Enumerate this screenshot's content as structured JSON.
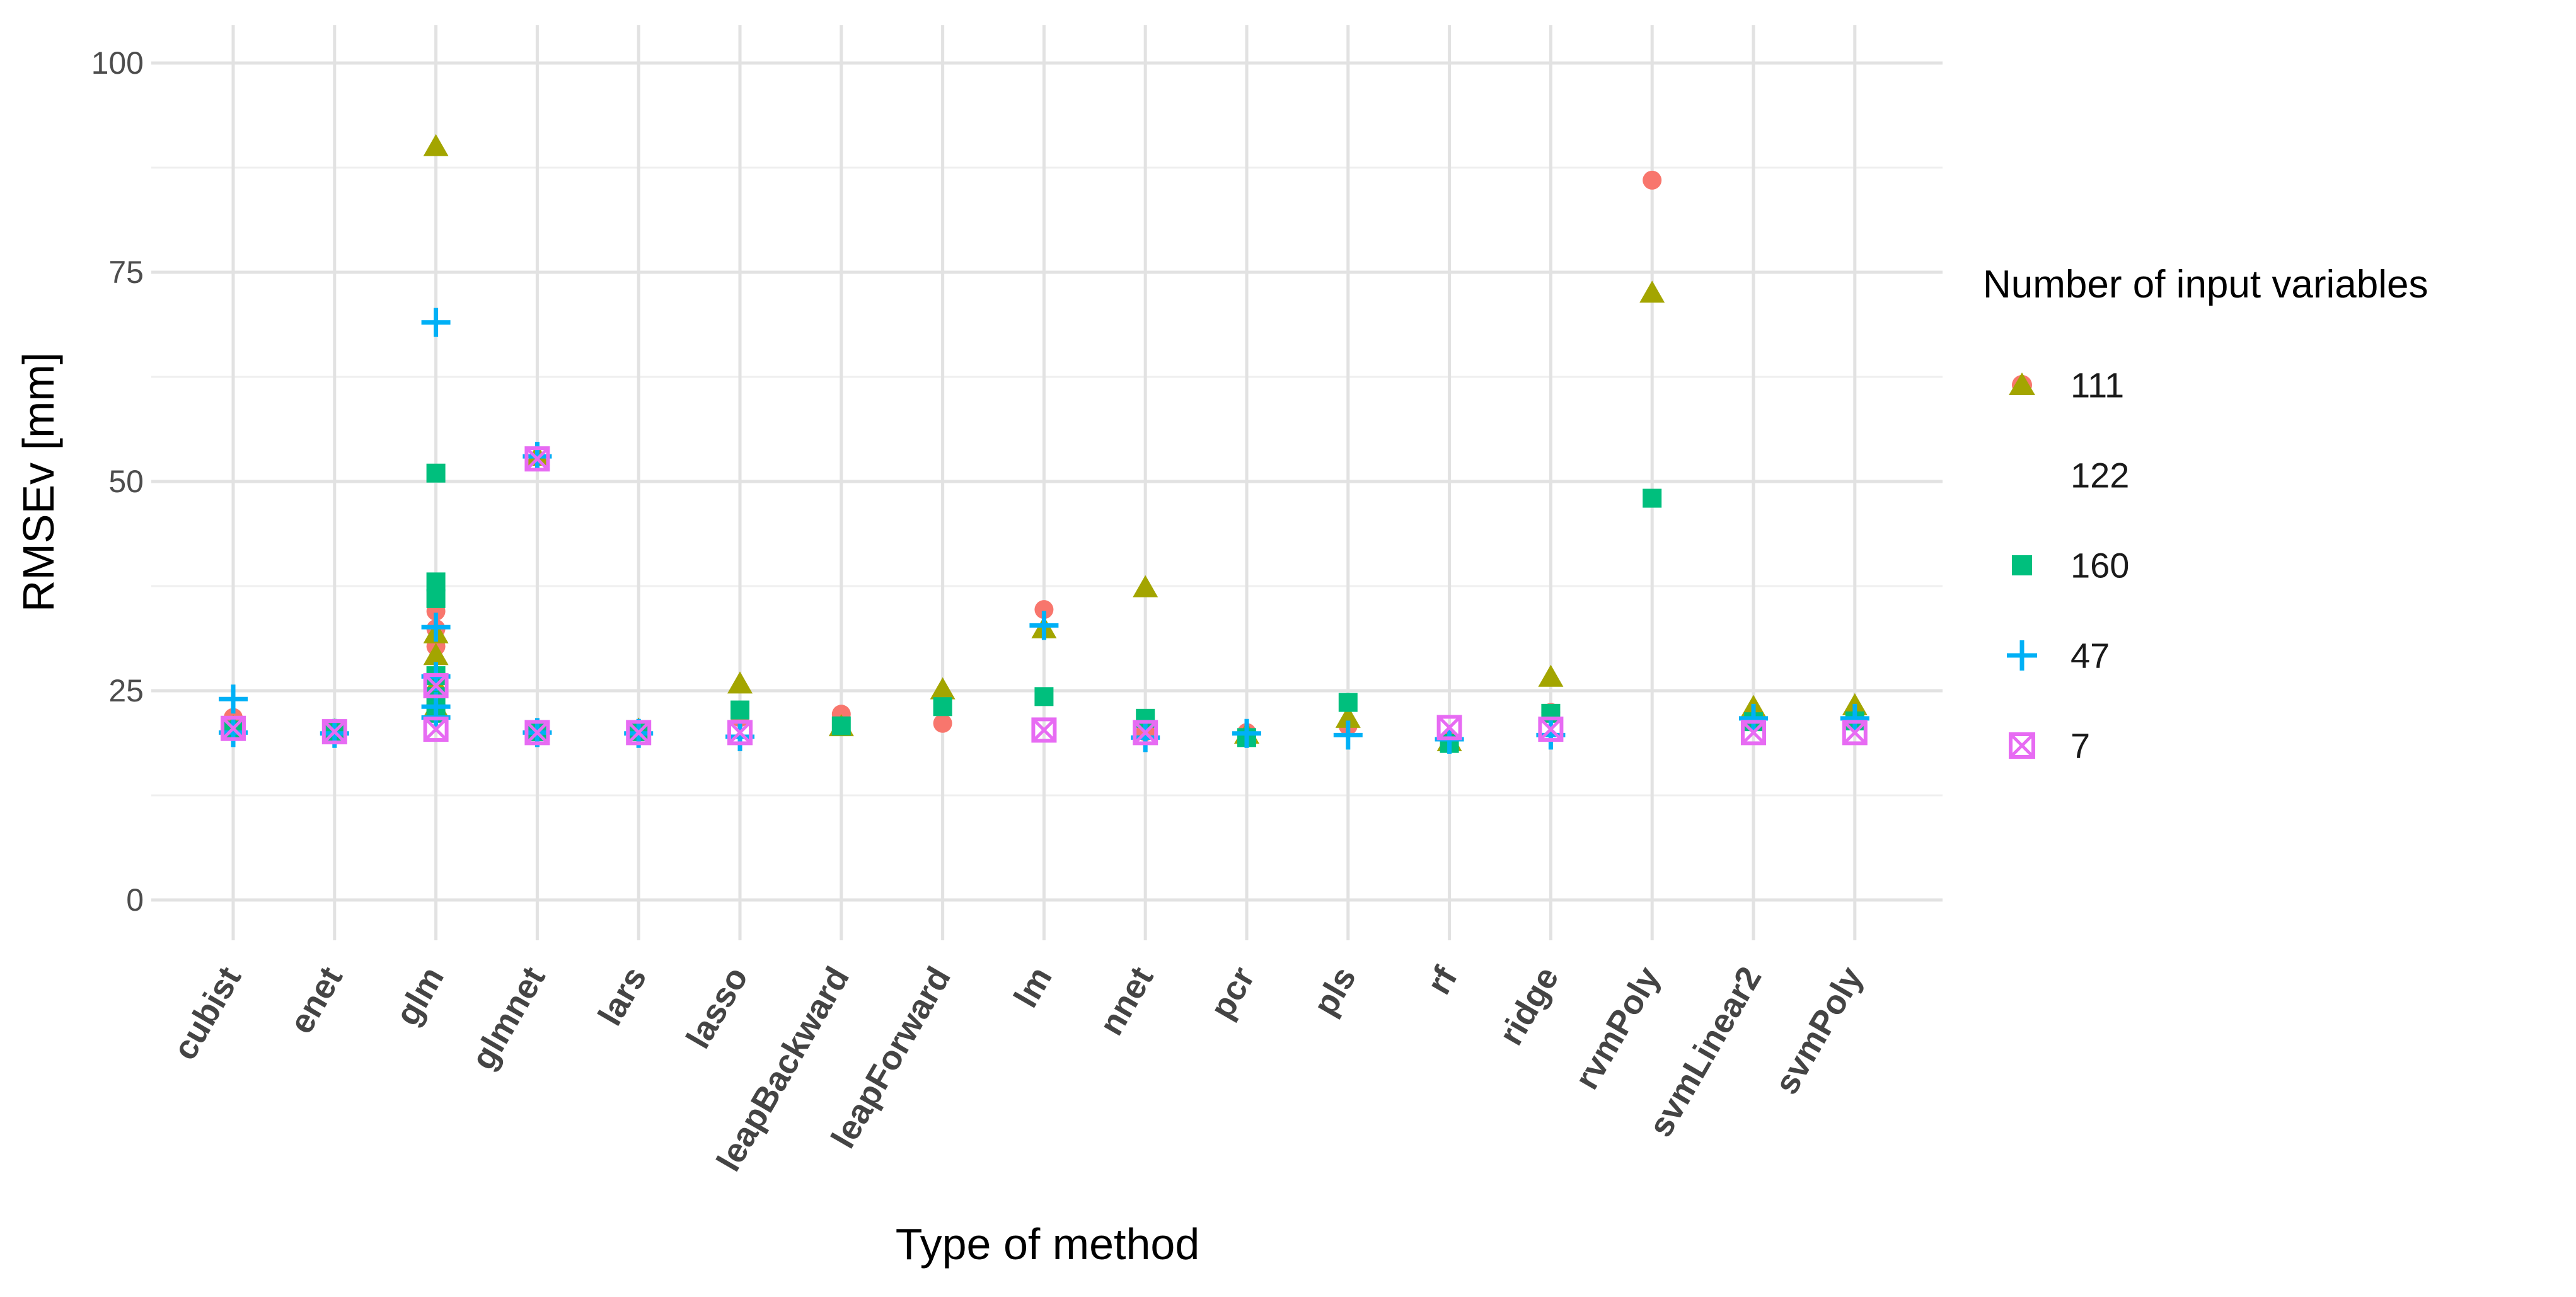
{
  "chart_data": {
    "type": "scatter",
    "title": "",
    "xlabel": "Type of method",
    "ylabel": "RMSEv [mm]",
    "categories": [
      "cubist",
      "enet",
      "glm",
      "glmnet",
      "lars",
      "lasso",
      "leapBackward",
      "leapForward",
      "lm",
      "nnet",
      "pcr",
      "pls",
      "rf",
      "ridge",
      "rvmPoly",
      "svmLinear2",
      "svmPoly"
    ],
    "y_ticks": [
      0,
      25,
      50,
      75,
      100
    ],
    "ylim": [
      -5,
      105
    ],
    "grid": {
      "major_color": "#e2e2e2",
      "minor_color": "#efefef",
      "horizontal_minor_step": 12.5,
      "vertical_minor": false
    },
    "legend": {
      "title": "Number of input variables",
      "position": "right"
    },
    "series": [
      {
        "name": "111",
        "marker": "circle",
        "color": "#F8766D",
        "points": {
          "cubist": [
            21.8
          ],
          "enet": [
            20.3
          ],
          "glm": [
            34.5,
            32.4,
            30.3,
            23.2
          ],
          "glmnet": [
            20.4
          ],
          "lars": [
            20.1
          ],
          "lasso": [
            21.8
          ],
          "leapBackward": [
            22.2
          ],
          "leapForward": [
            21.1
          ],
          "lm": [
            34.7
          ],
          "nnet": [
            20.1
          ],
          "pcr": [
            20.0
          ],
          "pls": [
            20.8
          ],
          "rf": [
            19.1
          ],
          "ridge": [
            22.4
          ],
          "rvmPoly": [
            86.0
          ],
          "svmLinear2": [
            21.9
          ],
          "svmPoly": [
            21.9
          ]
        }
      },
      {
        "name": "122",
        "marker": "triangle",
        "color": "#A3A500",
        "points": {
          "cubist": [
            20.6
          ],
          "enet": [
            20.2
          ],
          "glm": [
            90.0,
            31.8,
            29.2,
            25.7,
            23.0
          ],
          "glmnet": [
            53.0,
            20.2
          ],
          "lars": [
            20.3
          ],
          "lasso": [
            25.8
          ],
          "leapBackward": [
            20.7
          ],
          "leapForward": [
            25.1
          ],
          "lm": [
            32.4
          ],
          "nnet": [
            37.3
          ],
          "pcr": [
            19.8
          ],
          "pls": [
            21.7
          ],
          "rf": [
            18.9
          ],
          "ridge": [
            26.6
          ],
          "rvmPoly": [
            72.5
          ],
          "svmLinear2": [
            23.0
          ],
          "svmPoly": [
            23.2
          ]
        }
      },
      {
        "name": "160",
        "marker": "square",
        "color": "#00BF7D",
        "points": {
          "cubist": [
            20.3
          ],
          "enet": [
            20.0
          ],
          "glm": [
            51.0,
            38.0,
            36.0,
            26.8,
            24.3,
            22.3
          ],
          "glmnet": [
            20.1
          ],
          "lars": [
            20.1
          ],
          "lasso": [
            22.7
          ],
          "leapBackward": [
            20.8
          ],
          "leapForward": [
            23.1
          ],
          "lm": [
            24.3
          ],
          "nnet": [
            21.7
          ],
          "pcr": [
            19.4
          ],
          "pls": [
            23.6
          ],
          "rf": [
            18.7
          ],
          "ridge": [
            22.3
          ],
          "rvmPoly": [
            48.0
          ],
          "svmLinear2": [
            21.3
          ],
          "svmPoly": [
            21.4
          ]
        }
      },
      {
        "name": "47",
        "marker": "plus",
        "color": "#00B0F6",
        "points": {
          "cubist": [
            24.0,
            20.0
          ],
          "enet": [
            19.9
          ],
          "glm": [
            69.0,
            32.6,
            26.7,
            23.1,
            21.8
          ],
          "glmnet": [
            53.0,
            20.0
          ],
          "lars": [
            19.9
          ],
          "lasso": [
            19.5
          ],
          "leapBackward": [],
          "leapForward": [],
          "lm": [
            32.8
          ],
          "nnet": [
            19.4
          ],
          "pcr": [
            19.9
          ],
          "pls": [
            19.7
          ],
          "rf": [
            19.2
          ],
          "ridge": [
            19.7
          ],
          "rvmPoly": [],
          "svmLinear2": [
            21.7
          ],
          "svmPoly": [
            21.7
          ]
        }
      },
      {
        "name": "7",
        "marker": "box-x",
        "color": "#E76BF3",
        "points": {
          "cubist": [
            20.5
          ],
          "enet": [
            20.1
          ],
          "glm": [
            25.6,
            20.4
          ],
          "glmnet": [
            52.7,
            20.0
          ],
          "lars": [
            20.0
          ],
          "lasso": [
            20.0
          ],
          "leapBackward": [],
          "leapForward": [],
          "lm": [
            20.3
          ],
          "nnet": [
            20.0
          ],
          "pcr": [],
          "pls": [],
          "rf": [
            20.6
          ],
          "ridge": [
            20.4
          ],
          "rvmPoly": [],
          "svmLinear2": [
            20.0
          ],
          "svmPoly": [
            20.0
          ]
        }
      }
    ]
  }
}
